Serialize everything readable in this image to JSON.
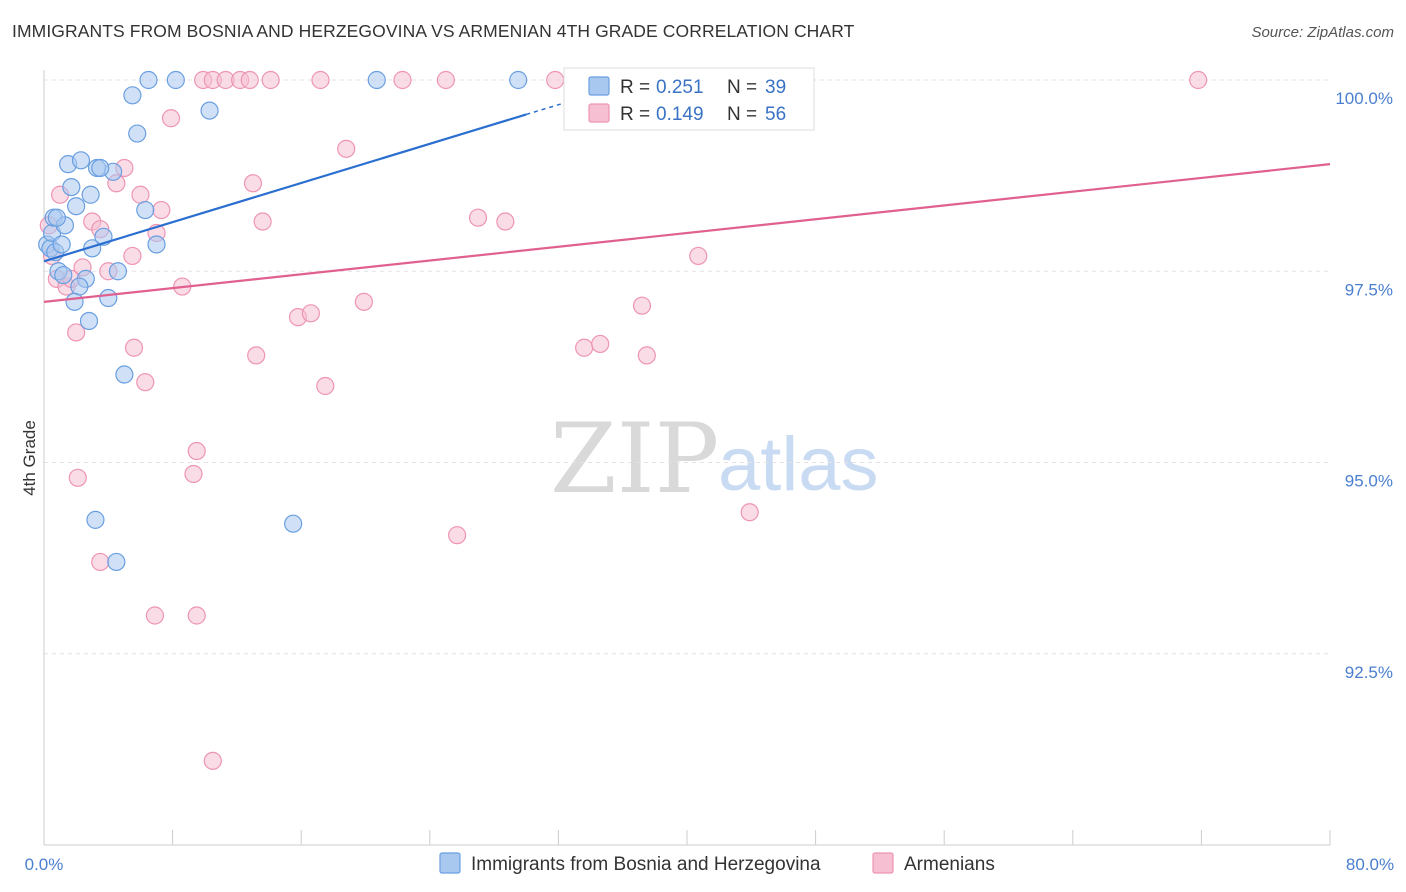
{
  "header": {
    "title": "IMMIGRANTS FROM BOSNIA AND HERZEGOVINA VS ARMENIAN 4TH GRADE CORRELATION CHART",
    "source": "Source: ZipAtlas.com"
  },
  "watermark": {
    "zip": "ZIP",
    "atlas": "atlas"
  },
  "colors": {
    "blue_fill": "#a9c8f0",
    "blue_stroke": "#6a9fe0",
    "blue_line": "#2a6fd0",
    "pink_fill": "#f6bfd2",
    "pink_stroke": "#ee94b4",
    "pink_line": "#e0608f",
    "tick_text": "#4a7fcf",
    "grid": "#e3e3e3"
  },
  "legend": {
    "rows": [
      {
        "r_label": "R =",
        "r_value": "0.251",
        "n_label": "N =",
        "n_value": "39"
      },
      {
        "r_label": "R =",
        "r_value": "0.149",
        "n_label": "N =",
        "n_value": "56"
      }
    ]
  },
  "chart_data": {
    "type": "scatter",
    "title": "IMMIGRANTS FROM BOSNIA AND HERZEGOVINA VS ARMENIAN 4TH GRADE CORRELATION CHART",
    "xlabel": "",
    "ylabel": "4th Grade",
    "xlim": [
      0,
      80
    ],
    "ylim": [
      90.5,
      100.3
    ],
    "x_tick_labels": [
      "0.0%",
      "80.0%"
    ],
    "y_ticks": [
      92.5,
      95.0,
      97.5,
      100.0
    ],
    "y_tick_labels": [
      "92.5%",
      "95.0%",
      "97.5%",
      "100.0%"
    ],
    "series": [
      {
        "name": "Immigrants from Bosnia and Herzegovina",
        "color": "blue",
        "trend": {
          "x0": 0,
          "y0": 97.63,
          "x1": 30,
          "y1": 99.55,
          "dash_to_x": 33,
          "dash_to_y": 99.74
        },
        "points": [
          [
            0.2,
            97.85
          ],
          [
            0.4,
            97.8
          ],
          [
            0.5,
            98.0
          ],
          [
            0.6,
            98.2
          ],
          [
            0.7,
            97.75
          ],
          [
            0.9,
            97.5
          ],
          [
            1.1,
            97.85
          ],
          [
            1.3,
            98.1
          ],
          [
            1.5,
            98.9
          ],
          [
            1.7,
            98.6
          ],
          [
            2.0,
            98.35
          ],
          [
            2.3,
            98.95
          ],
          [
            2.6,
            97.4
          ],
          [
            2.9,
            98.5
          ],
          [
            3.0,
            97.8
          ],
          [
            3.3,
            98.85
          ],
          [
            3.7,
            97.95
          ],
          [
            4.0,
            97.15
          ],
          [
            4.3,
            98.8
          ],
          [
            4.6,
            97.5
          ],
          [
            5.0,
            96.15
          ],
          [
            5.5,
            99.8
          ],
          [
            5.8,
            99.3
          ],
          [
            6.3,
            98.3
          ],
          [
            7.0,
            97.85
          ],
          [
            6.5,
            100.0
          ],
          [
            8.2,
            100.0
          ],
          [
            10.3,
            99.6
          ],
          [
            20.7,
            100.0
          ],
          [
            29.5,
            100.0
          ],
          [
            3.2,
            94.25
          ],
          [
            4.5,
            93.7
          ],
          [
            15.5,
            94.2
          ],
          [
            2.2,
            97.3
          ],
          [
            1.9,
            97.1
          ],
          [
            2.8,
            96.85
          ],
          [
            1.2,
            97.45
          ],
          [
            0.8,
            98.2
          ],
          [
            3.5,
            98.85
          ]
        ]
      },
      {
        "name": "Armenians",
        "color": "pink",
        "trend": {
          "x0": 0,
          "y0": 97.1,
          "x1": 80,
          "y1": 98.9
        },
        "points": [
          [
            0.3,
            98.1
          ],
          [
            0.5,
            97.7
          ],
          [
            0.8,
            97.4
          ],
          [
            1.0,
            98.5
          ],
          [
            1.4,
            97.3
          ],
          [
            1.7,
            97.4
          ],
          [
            2.0,
            96.7
          ],
          [
            2.4,
            97.55
          ],
          [
            3.0,
            98.15
          ],
          [
            3.5,
            98.05
          ],
          [
            4.0,
            97.5
          ],
          [
            4.5,
            98.65
          ],
          [
            5.0,
            98.85
          ],
          [
            5.5,
            97.7
          ],
          [
            6.0,
            98.5
          ],
          [
            6.3,
            96.05
          ],
          [
            7.0,
            98.0
          ],
          [
            7.3,
            98.3
          ],
          [
            7.9,
            99.5
          ],
          [
            8.6,
            97.3
          ],
          [
            9.3,
            94.85
          ],
          [
            9.5,
            95.15
          ],
          [
            9.9,
            100.0
          ],
          [
            10.5,
            100.0
          ],
          [
            11.3,
            100.0
          ],
          [
            12.2,
            100.0
          ],
          [
            12.8,
            100.0
          ],
          [
            13.0,
            98.65
          ],
          [
            13.2,
            96.4
          ],
          [
            13.6,
            98.15
          ],
          [
            14.1,
            100.0
          ],
          [
            15.8,
            96.9
          ],
          [
            16.6,
            96.95
          ],
          [
            17.2,
            100.0
          ],
          [
            17.5,
            96.0
          ],
          [
            18.8,
            99.1
          ],
          [
            19.9,
            97.1
          ],
          [
            22.3,
            100.0
          ],
          [
            25.0,
            100.0
          ],
          [
            27.0,
            98.2
          ],
          [
            28.7,
            98.15
          ],
          [
            31.8,
            100.0
          ],
          [
            33.6,
            96.5
          ],
          [
            34.6,
            96.55
          ],
          [
            37.2,
            97.05
          ],
          [
            37.5,
            96.4
          ],
          [
            40.7,
            97.7
          ],
          [
            43.9,
            94.35
          ],
          [
            71.8,
            100.0
          ],
          [
            2.1,
            94.8
          ],
          [
            3.5,
            93.7
          ],
          [
            6.9,
            93.0
          ],
          [
            9.5,
            93.0
          ],
          [
            10.5,
            91.1
          ],
          [
            25.7,
            94.05
          ],
          [
            5.6,
            96.5
          ]
        ]
      }
    ]
  },
  "bottom_legend": {
    "items": [
      {
        "label": "Immigrants from Bosnia and Herzegovina"
      },
      {
        "label": "Armenians"
      }
    ]
  }
}
